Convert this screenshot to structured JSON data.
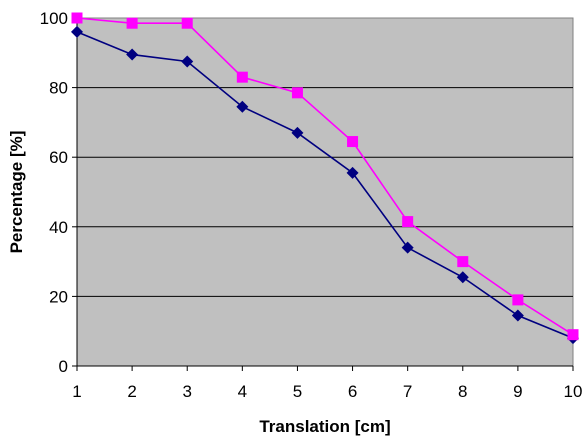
{
  "chart_data": {
    "type": "line",
    "title": "",
    "xlabel": "Translation [cm]",
    "ylabel": "Percentage [%]",
    "x": [
      1,
      2,
      3,
      4,
      5,
      6,
      7,
      8,
      9,
      10
    ],
    "xlim": [
      1,
      10
    ],
    "ylim": [
      0,
      100
    ],
    "yticks": [
      0,
      20,
      40,
      60,
      80,
      100
    ],
    "grid": "horizontal",
    "plot_background": "#c0c0c0",
    "legend": "none",
    "series": [
      {
        "marker": "diamond",
        "color": "#000080",
        "values": [
          96,
          89.5,
          87.5,
          74.5,
          67,
          55.5,
          34,
          25.5,
          14.5,
          8
        ]
      },
      {
        "marker": "square",
        "color": "#ff00ff",
        "values": [
          100,
          98.5,
          98.5,
          83,
          78.5,
          64.5,
          41.5,
          30,
          19,
          9
        ]
      }
    ]
  }
}
